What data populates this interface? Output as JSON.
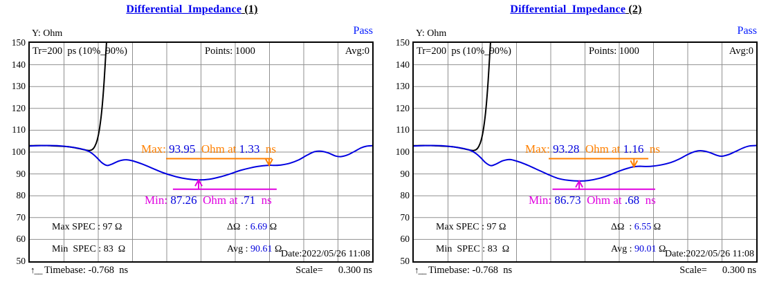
{
  "charts": [
    {
      "title_main": "Differential_Impedance",
      "title_suffix": " (1)",
      "status": "Pass",
      "y_axis_label": "Y: Ohm",
      "header": {
        "tr": "Tr=200  ps (10%_90%)",
        "points": "Points: 1000",
        "avg": "Avg:0"
      },
      "y_ticks": [
        150,
        140,
        130,
        120,
        110,
        100,
        90,
        80,
        70,
        60,
        50
      ],
      "annotations": {
        "max": {
          "parts": [
            {
              "text": "Max: ",
              "color": "#ff8000"
            },
            {
              "text": "93.95",
              "color": "#0000dd"
            },
            {
              "text": "  Ohm at ",
              "color": "#ff8000"
            },
            {
              "text": "1.33",
              "color": "#0000dd"
            },
            {
              "text": "  ns",
              "color": "#ff8000"
            }
          ]
        },
        "min": {
          "parts": [
            {
              "text": "Min: ",
              "color": "#e000e0"
            },
            {
              "text": "87.26",
              "color": "#0000dd"
            },
            {
              "text": "  Ohm at ",
              "color": "#e000e0"
            },
            {
              "text": ".71",
              "color": "#0000dd"
            },
            {
              "text": "  ns",
              "color": "#e000e0"
            }
          ]
        }
      },
      "stats": {
        "max_spec": "Max SPEC : 97 Ω",
        "min_spec": "Min  SPEC : 83  Ω",
        "delta_label": "ΔΩ  : ",
        "delta_value": "6.69",
        "delta_unit": " Ω",
        "avg_label": "Avg : ",
        "avg_value": "90.61",
        "avg_unit": " Ω",
        "date": "Date:2022/05/26 11:08"
      },
      "footer": {
        "origin_icon": "↑__",
        "timebase": "Timebase: -0.768  ns",
        "scale_label": "Scale=",
        "scale_value": "0.300 ns"
      }
    },
    {
      "title_main": "Differential_Impedance",
      "title_suffix": " (2)",
      "status": "Pass",
      "y_axis_label": "Y: Ohm",
      "header": {
        "tr": "Tr=200  ps (10%_90%)",
        "points": "Points: 1000",
        "avg": "Avg:0"
      },
      "y_ticks": [
        150,
        140,
        130,
        120,
        110,
        100,
        90,
        80,
        70,
        60,
        50
      ],
      "annotations": {
        "max": {
          "parts": [
            {
              "text": "Max: ",
              "color": "#ff8000"
            },
            {
              "text": "93.28",
              "color": "#0000dd"
            },
            {
              "text": "  Ohm at ",
              "color": "#ff8000"
            },
            {
              "text": "1.16",
              "color": "#0000dd"
            },
            {
              "text": "  ns",
              "color": "#ff8000"
            }
          ]
        },
        "min": {
          "parts": [
            {
              "text": "Min: ",
              "color": "#e000e0"
            },
            {
              "text": "86.73",
              "color": "#0000dd"
            },
            {
              "text": "  Ohm at ",
              "color": "#e000e0"
            },
            {
              "text": ".68",
              "color": "#0000dd"
            },
            {
              "text": "  ns",
              "color": "#e000e0"
            }
          ]
        }
      },
      "stats": {
        "max_spec": "Max SPEC : 97 Ω",
        "min_spec": "Min  SPEC : 83  Ω",
        "delta_label": "ΔΩ  : ",
        "delta_value": "6.55",
        "delta_unit": " Ω",
        "avg_label": "Avg : ",
        "avg_value": "90.01",
        "avg_unit": " Ω",
        "date": "Date:2022/05/26 11:08"
      },
      "footer": {
        "origin_icon": "↑__",
        "timebase": "Timebase: -0.768  ns",
        "scale_label": "Scale=",
        "scale_value": "0.300 ns"
      }
    }
  ],
  "chart_data": [
    {
      "type": "line",
      "title": "Differential_Impedance (1)",
      "x_axis": {
        "unit": "ns",
        "start": -0.768,
        "scale_per_div": 0.3,
        "divisions": 10,
        "end": 2.232
      },
      "y_axis": {
        "unit": "Ohm",
        "min": 50,
        "max": 150,
        "tick_step": 10
      },
      "grid": true,
      "grid_color": "#8f8f8f",
      "series": [
        {
          "name": "differential-impedance",
          "color": "#0000e0",
          "points": [
            [
              0,
              102.8
            ],
            [
              0.025,
              102.9
            ],
            [
              0.05,
              103.0
            ],
            [
              0.08,
              102.9
            ],
            [
              0.11,
              102.5
            ],
            [
              0.14,
              101.8
            ],
            [
              0.165,
              100.8
            ],
            [
              0.18,
              99.6
            ],
            [
              0.195,
              97.6
            ],
            [
              0.21,
              95.2
            ],
            [
              0.225,
              93.9
            ],
            [
              0.24,
              94.5
            ],
            [
              0.26,
              95.9
            ],
            [
              0.28,
              96.5
            ],
            [
              0.3,
              96.0
            ],
            [
              0.325,
              94.7
            ],
            [
              0.355,
              92.8
            ],
            [
              0.39,
              90.5
            ],
            [
              0.43,
              88.6
            ],
            [
              0.46,
              87.7
            ],
            [
              0.493,
              87.26
            ],
            [
              0.525,
              87.6
            ],
            [
              0.555,
              88.6
            ],
            [
              0.585,
              90.0
            ],
            [
              0.615,
              91.6
            ],
            [
              0.645,
              92.8
            ],
            [
              0.67,
              93.5
            ],
            [
              0.699,
              93.95
            ],
            [
              0.715,
              93.9
            ],
            [
              0.735,
              94.1
            ],
            [
              0.76,
              94.9
            ],
            [
              0.785,
              96.4
            ],
            [
              0.81,
              98.6
            ],
            [
              0.832,
              100.2
            ],
            [
              0.85,
              100.4
            ],
            [
              0.87,
              99.7
            ],
            [
              0.893,
              98.2
            ],
            [
              0.908,
              97.9
            ],
            [
              0.928,
              98.7
            ],
            [
              0.948,
              100.3
            ],
            [
              0.967,
              101.9
            ],
            [
              0.983,
              102.7
            ],
            [
              1,
              102.9
            ]
          ]
        },
        {
          "name": "step-rising-edge",
          "color": "#000000",
          "points": [
            [
              0,
              102.9
            ],
            [
              0.03,
              103.0
            ],
            [
              0.06,
              102.9
            ],
            [
              0.09,
              102.7
            ],
            [
              0.12,
              102.3
            ],
            [
              0.15,
              101.4
            ],
            [
              0.165,
              100.9
            ],
            [
              0.175,
              100.7
            ],
            [
              0.183,
              101.2
            ],
            [
              0.19,
              102.6
            ],
            [
              0.197,
              105.5
            ],
            [
              0.204,
              111
            ],
            [
              0.211,
              120
            ],
            [
              0.217,
              132
            ],
            [
              0.222,
              145
            ],
            [
              0.227,
              157
            ]
          ]
        }
      ],
      "markers": {
        "max": {
          "value_ohm": 93.95,
          "at_ns": 1.33,
          "spec_line_ohm": 97,
          "line_span_t": [
            0.398,
            0.707
          ],
          "arrow_t": 0.699,
          "color": "#ff8000"
        },
        "min": {
          "value_ohm": 87.26,
          "at_ns": 0.71,
          "spec_line_ohm": 83,
          "line_span_t": [
            0.418,
            0.721
          ],
          "arrow_t": 0.493,
          "color": "#e000e0"
        }
      },
      "readings": {
        "max_spec_ohm": 97,
        "min_spec_ohm": 83,
        "delta_ohm": 6.69,
        "avg_ohm": 90.61,
        "result": "Pass"
      }
    },
    {
      "type": "line",
      "title": "Differential_Impedance (2)",
      "x_axis": {
        "unit": "ns",
        "start": -0.768,
        "scale_per_div": 0.3,
        "divisions": 10,
        "end": 2.232
      },
      "y_axis": {
        "unit": "Ohm",
        "min": 50,
        "max": 150,
        "tick_step": 10
      },
      "grid": true,
      "grid_color": "#8f8f8f",
      "series": [
        {
          "name": "differential-impedance",
          "color": "#0000e0",
          "points": [
            [
              0,
              102.8
            ],
            [
              0.025,
              102.9
            ],
            [
              0.05,
              103.0
            ],
            [
              0.08,
              102.9
            ],
            [
              0.11,
              102.5
            ],
            [
              0.14,
              101.8
            ],
            [
              0.165,
              100.8
            ],
            [
              0.18,
              99.5
            ],
            [
              0.195,
              97.5
            ],
            [
              0.21,
              95.1
            ],
            [
              0.225,
              93.8
            ],
            [
              0.24,
              94.5
            ],
            [
              0.26,
              96.0
            ],
            [
              0.28,
              96.6
            ],
            [
              0.3,
              95.9
            ],
            [
              0.325,
              94.5
            ],
            [
              0.355,
              92.4
            ],
            [
              0.39,
              89.9
            ],
            [
              0.42,
              88.0
            ],
            [
              0.45,
              87.1
            ],
            [
              0.483,
              86.73
            ],
            [
              0.51,
              87.0
            ],
            [
              0.54,
              87.9
            ],
            [
              0.57,
              89.4
            ],
            [
              0.6,
              91.3
            ],
            [
              0.625,
              92.6
            ],
            [
              0.643,
              93.28
            ],
            [
              0.66,
              93.5
            ],
            [
              0.68,
              93.4
            ],
            [
              0.7,
              93.6
            ],
            [
              0.725,
              94.2
            ],
            [
              0.75,
              95.2
            ],
            [
              0.775,
              96.8
            ],
            [
              0.8,
              98.9
            ],
            [
              0.822,
              100.3
            ],
            [
              0.84,
              100.6
            ],
            [
              0.862,
              99.9
            ],
            [
              0.885,
              98.5
            ],
            [
              0.9,
              98.1
            ],
            [
              0.92,
              98.9
            ],
            [
              0.94,
              100.3
            ],
            [
              0.962,
              101.9
            ],
            [
              0.98,
              102.8
            ],
            [
              1,
              103.0
            ]
          ]
        },
        {
          "name": "step-rising-edge",
          "color": "#000000",
          "points": [
            [
              0,
              102.9
            ],
            [
              0.03,
              103.0
            ],
            [
              0.06,
              102.9
            ],
            [
              0.09,
              102.7
            ],
            [
              0.12,
              102.3
            ],
            [
              0.15,
              101.4
            ],
            [
              0.165,
              100.9
            ],
            [
              0.175,
              100.7
            ],
            [
              0.183,
              101.2
            ],
            [
              0.19,
              102.6
            ],
            [
              0.197,
              105.5
            ],
            [
              0.204,
              111
            ],
            [
              0.211,
              120
            ],
            [
              0.217,
              132
            ],
            [
              0.222,
              145
            ],
            [
              0.227,
              157
            ]
          ]
        }
      ],
      "markers": {
        "max": {
          "value_ohm": 93.28,
          "at_ns": 1.16,
          "spec_line_ohm": 97,
          "line_span_t": [
            0.394,
            0.685
          ],
          "arrow_t": 0.643,
          "color": "#ff8000"
        },
        "min": {
          "value_ohm": 86.73,
          "at_ns": 0.68,
          "spec_line_ohm": 83,
          "line_span_t": [
            0.405,
            0.705
          ],
          "arrow_t": 0.483,
          "color": "#e000e0"
        }
      },
      "readings": {
        "max_spec_ohm": 97,
        "min_spec_ohm": 83,
        "delta_ohm": 6.55,
        "avg_ohm": 90.01,
        "result": "Pass"
      }
    }
  ]
}
